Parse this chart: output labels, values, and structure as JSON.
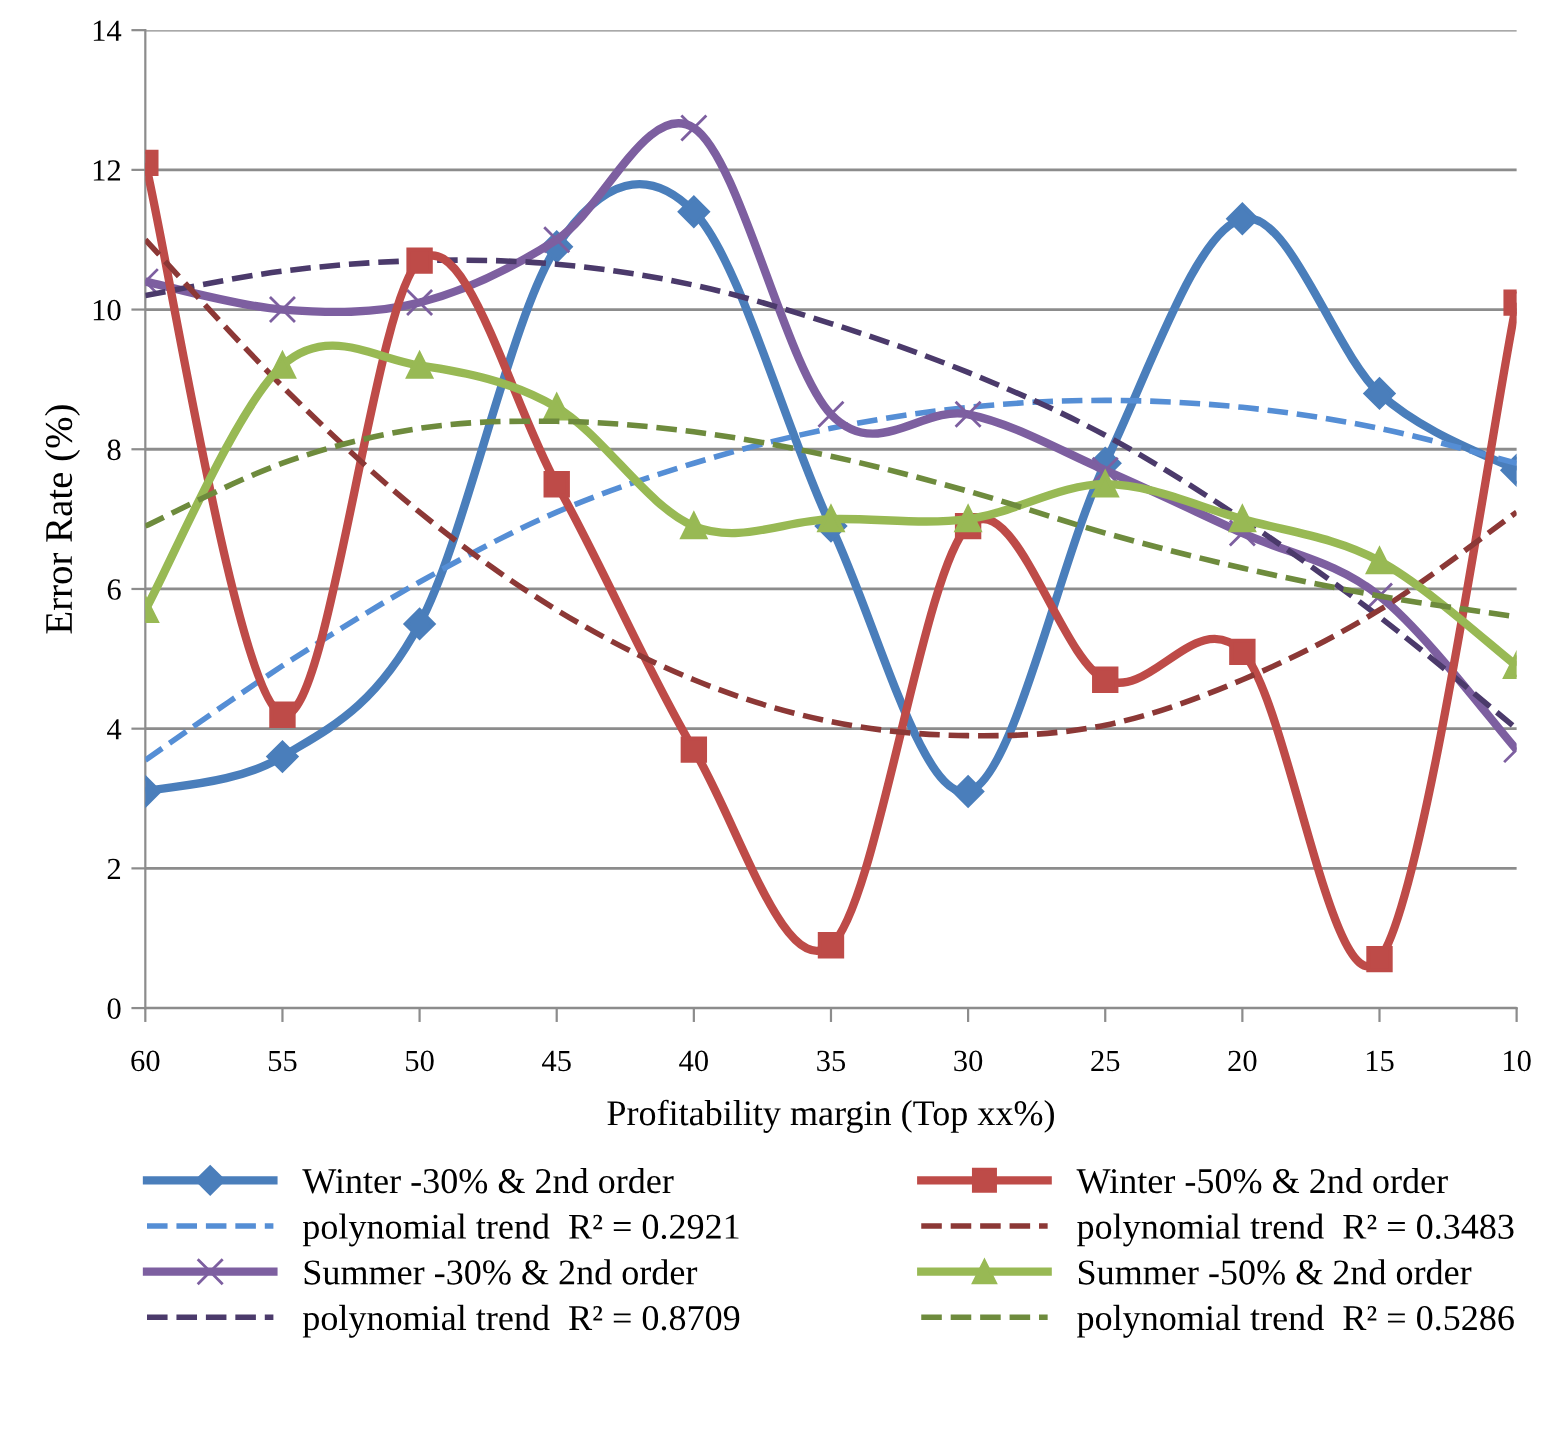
{
  "chart_data": {
    "type": "line",
    "xlabel": "Profitability margin (Top xx%)",
    "ylabel": "Error Rate (%)",
    "categories": [
      "60",
      "55",
      "50",
      "45",
      "40",
      "35",
      "30",
      "25",
      "20",
      "15",
      "10"
    ],
    "ylim": [
      0,
      14
    ],
    "yticks": [
      0,
      2,
      4,
      6,
      8,
      10,
      12,
      14
    ],
    "grid": "y",
    "legend": "bottom",
    "series": [
      {
        "name": "Winter -30% & 2nd order",
        "color": "#4a7ebb",
        "marker": "diamond",
        "line_style": "solid",
        "values": [
          3.1,
          3.6,
          5.5,
          10.9,
          11.4,
          6.9,
          3.1,
          7.8,
          11.3,
          8.8,
          7.7
        ]
      },
      {
        "name": "polynomial trend  R² = 0.2921",
        "color": "#558ed5",
        "marker": "none",
        "line_style": "dashed",
        "values": [
          3.55,
          4.9,
          6.1,
          7.1,
          7.8,
          8.3,
          8.6,
          8.7,
          8.6,
          8.3,
          7.8
        ]
      },
      {
        "name": "Summer -30% & 2nd order",
        "color": "#7d5fa0",
        "marker": "cross",
        "line_style": "solid",
        "values": [
          10.4,
          10.0,
          10.1,
          11.0,
          12.6,
          8.5,
          8.5,
          7.7,
          6.8,
          5.9,
          3.7
        ]
      },
      {
        "name": "polynomial trend  R² = 0.8709",
        "color": "#4b3a6b",
        "marker": "none",
        "line_style": "dashed",
        "values": [
          10.2,
          10.55,
          10.7,
          10.65,
          10.35,
          9.8,
          9.1,
          8.2,
          7.0,
          5.6,
          4.0
        ]
      },
      {
        "name": "Winter -50% & 2nd order",
        "color": "#be4b48",
        "marker": "square",
        "line_style": "solid",
        "values": [
          12.1,
          4.2,
          10.7,
          7.5,
          3.7,
          0.9,
          6.9,
          4.7,
          5.1,
          0.7,
          10.1
        ]
      },
      {
        "name": "polynomial trend  R² = 0.3483",
        "color": "#8c3836",
        "marker": "none",
        "line_style": "dashed",
        "values": [
          11.0,
          8.9,
          7.1,
          5.7,
          4.7,
          4.1,
          3.9,
          4.05,
          4.7,
          5.7,
          7.1
        ]
      },
      {
        "name": "Summer -50% & 2nd order",
        "color": "#98b954",
        "marker": "triangle",
        "line_style": "solid",
        "values": [
          5.7,
          9.2,
          9.2,
          8.6,
          6.9,
          7.0,
          7.0,
          7.5,
          7.0,
          6.4,
          4.9
        ]
      },
      {
        "name": "polynomial trend  R² = 0.5286",
        "color": "#6e8b3d",
        "marker": "none",
        "line_style": "dashed",
        "values": [
          6.9,
          7.8,
          8.3,
          8.4,
          8.25,
          7.9,
          7.4,
          6.8,
          6.3,
          5.9,
          5.6
        ]
      }
    ]
  }
}
